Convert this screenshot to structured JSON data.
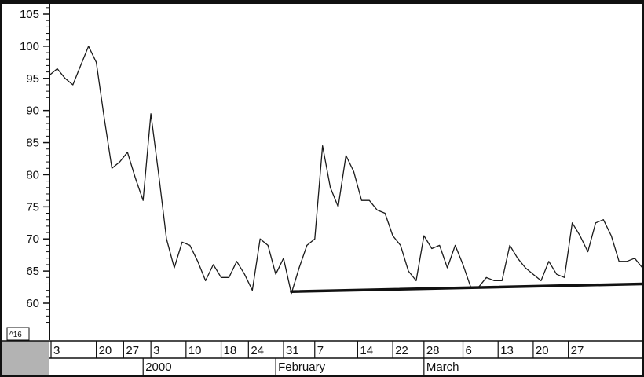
{
  "chart_data": {
    "type": "line",
    "title": "",
    "xlabel": "",
    "ylabel": "",
    "ylim": [
      57,
      106
    ],
    "yticks": [
      "105",
      "100",
      "95",
      "90",
      "85",
      "80",
      "75",
      "70",
      "65",
      "60"
    ],
    "ytick_values": [
      105,
      100,
      95,
      90,
      85,
      80,
      75,
      70,
      65,
      60
    ],
    "xticks": [
      "3",
      "20",
      "27",
      "3",
      "10",
      "18",
      "24",
      "31",
      "7",
      "14",
      "22",
      "28",
      "6",
      "13",
      "20",
      "27"
    ],
    "xtick_index": [
      -0.5,
      6,
      9.5,
      13,
      17.5,
      22,
      25.5,
      30,
      34,
      39.5,
      44,
      48,
      53,
      57.5,
      62,
      66.5
    ],
    "months": [
      "2000",
      "February",
      "March"
    ],
    "month_index": [
      12,
      29,
      48
    ],
    "grid": false,
    "series": [
      {
        "name": "",
        "values": [
          95.5,
          96.5,
          95,
          94,
          97,
          100,
          97.5,
          89,
          81,
          82,
          83.5,
          79.5,
          76,
          89.5,
          80,
          70,
          65.5,
          69.5,
          69,
          66.5,
          63.5,
          66,
          64,
          64,
          66.5,
          64.5,
          62,
          70,
          69,
          64.5,
          67,
          61.5,
          65.5,
          69,
          70,
          84.5,
          78,
          75,
          83,
          80.5,
          76,
          76,
          74.5,
          74,
          70.5,
          69,
          65,
          63.5,
          70.5,
          68.5,
          69,
          65.5,
          69,
          66,
          62.5,
          62.5,
          64,
          63.5,
          63.5,
          69,
          67,
          65.5,
          64.5,
          63.5,
          66.5,
          64.5,
          64,
          72.5,
          70.5,
          68,
          72.5,
          73,
          70.5,
          66.5,
          66.5,
          67,
          65.5
        ]
      }
    ],
    "trendline": {
      "from": [
        31,
        61.8
      ],
      "to": [
        76,
        63
      ]
    },
    "badge": "^16"
  }
}
